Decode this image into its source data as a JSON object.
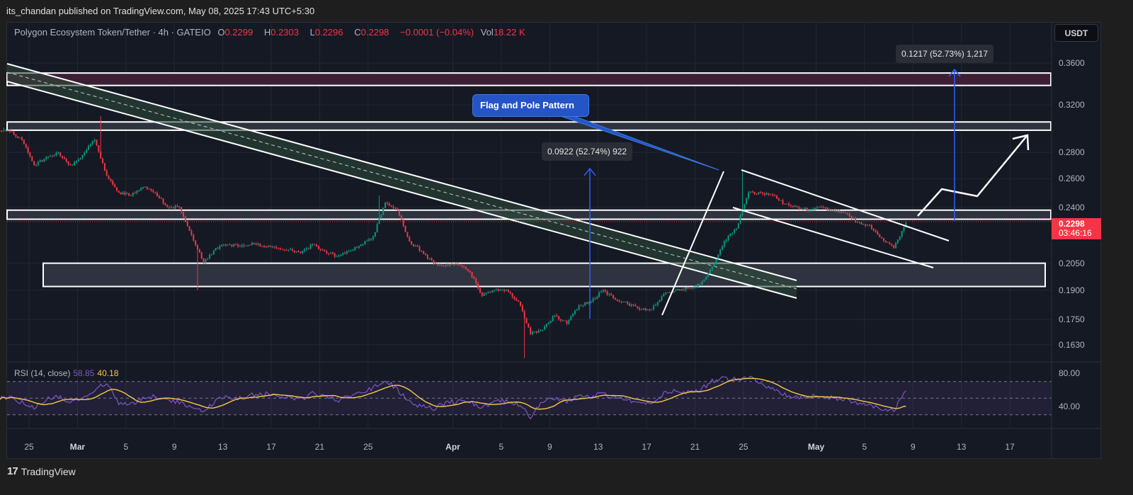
{
  "header": {
    "published": "its_chandan published on TradingView.com, May 08, 2025 17:43 UTC+5:30"
  },
  "legend": {
    "symbol": "Polygon Ecosystem Token/Tether · 4h · GATEIO",
    "o_label": "O",
    "o": "0.2299",
    "h_label": "H",
    "h": "0.2303",
    "l_label": "L",
    "l": "0.2296",
    "c_label": "C",
    "c": "0.2298",
    "change": "−0.0001 (−0.04%)",
    "vol_label": "Vol",
    "vol": "18.22 K"
  },
  "currency_button": "USDT",
  "last_price": {
    "price": "0.2298",
    "countdown": "03:46:16",
    "color": "#f23645"
  },
  "annotations": {
    "callout": "Flag and Pole Pattern",
    "measure_1": "0.0922 (52.74%) 922",
    "measure_2": "0.1217 (52.73%) 1,217"
  },
  "rsi": {
    "label": "RSI (14, close)",
    "value": "58.85",
    "ma_value": "40.18",
    "ticks": [
      "80.00",
      "40.00"
    ]
  },
  "footer": {
    "brand": "TradingView"
  },
  "colors": {
    "up": "#089981",
    "down": "#f23645",
    "rsi": "#7e57c2",
    "rsi_ma": "#f7c948",
    "callout": "#2554c7",
    "measure": "#2962ff"
  },
  "chart_data": {
    "type": "candlestick",
    "title": "Polygon Ecosystem Token/Tether · 4h · GATEIO",
    "y_scale": "log",
    "ylim": [
      0.155,
      0.375
    ],
    "price_ticks": [
      "0.3600",
      "0.3200",
      "0.2800",
      "0.2600",
      "0.2400",
      "0.2050",
      "0.1900",
      "0.1750",
      "0.1630"
    ],
    "x_ticks": [
      {
        "label": "25",
        "date": "2025-02-25"
      },
      {
        "label": "Mar",
        "date": "2025-03-01"
      },
      {
        "label": "5",
        "date": "2025-03-05"
      },
      {
        "label": "9",
        "date": "2025-03-09"
      },
      {
        "label": "13",
        "date": "2025-03-13"
      },
      {
        "label": "17",
        "date": "2025-03-17"
      },
      {
        "label": "21",
        "date": "2025-03-21"
      },
      {
        "label": "25",
        "date": "2025-03-25"
      },
      {
        "label": "Apr",
        "date": "2025-04-01"
      },
      {
        "label": "5",
        "date": "2025-04-05"
      },
      {
        "label": "9",
        "date": "2025-04-09"
      },
      {
        "label": "13",
        "date": "2025-04-13"
      },
      {
        "label": "17",
        "date": "2025-04-17"
      },
      {
        "label": "21",
        "date": "2025-04-21"
      },
      {
        "label": "25",
        "date": "2025-04-25"
      },
      {
        "label": "May",
        "date": "2025-05-01"
      },
      {
        "label": "5",
        "date": "2025-05-05"
      },
      {
        "label": "9",
        "date": "2025-05-09"
      },
      {
        "label": "13",
        "date": "2025-05-13"
      },
      {
        "label": "17",
        "date": "2025-05-17"
      }
    ],
    "daily_start": "2025-02-23",
    "daily_close": [
      0.297,
      0.29,
      0.27,
      0.276,
      0.28,
      0.27,
      0.278,
      0.29,
      0.262,
      0.25,
      0.248,
      0.254,
      0.25,
      0.24,
      0.24,
      0.222,
      0.205,
      0.214,
      0.216,
      0.215,
      0.217,
      0.215,
      0.214,
      0.213,
      0.211,
      0.216,
      0.212,
      0.209,
      0.212,
      0.216,
      0.221,
      0.243,
      0.238,
      0.218,
      0.212,
      0.205,
      0.204,
      0.204,
      0.2,
      0.187,
      0.19,
      0.19,
      0.184,
      0.168,
      0.17,
      0.177,
      0.173,
      0.182,
      0.184,
      0.19,
      0.185,
      0.183,
      0.18,
      0.18,
      0.188,
      0.19,
      0.191,
      0.193,
      0.203,
      0.218,
      0.226,
      0.25,
      0.25,
      0.248,
      0.242,
      0.24,
      0.238,
      0.24,
      0.238,
      0.236,
      0.23,
      0.228,
      0.22,
      0.214,
      0.2298
    ],
    "wick_extremes": [
      {
        "date": "2025-02-23",
        "high": 0.3
      },
      {
        "date": "2025-03-03",
        "high": 0.31
      },
      {
        "date": "2025-03-11",
        "low": 0.19
      },
      {
        "date": "2025-03-26",
        "high": 0.248
      },
      {
        "date": "2025-04-07",
        "low": 0.157
      },
      {
        "date": "2025-04-25",
        "high": 0.266
      }
    ],
    "rsi_daily": [
      50,
      45,
      38,
      48,
      52,
      45,
      50,
      58,
      70,
      45,
      42,
      50,
      52,
      48,
      46,
      40,
      34,
      48,
      52,
      50,
      54,
      55,
      53,
      52,
      48,
      56,
      54,
      46,
      52,
      56,
      62,
      72,
      60,
      45,
      40,
      38,
      45,
      46,
      45,
      38,
      45,
      47,
      42,
      28,
      45,
      50,
      46,
      55,
      52,
      55,
      50,
      48,
      46,
      44,
      55,
      58,
      57,
      60,
      70,
      74,
      72,
      76,
      68,
      62,
      55,
      50,
      52,
      53,
      50,
      48,
      44,
      42,
      38,
      35,
      58.85
    ],
    "rsi_levels": [
      70,
      50,
      30
    ],
    "zones": [
      [
        0.338,
        0.35
      ],
      [
        0.298,
        0.305
      ],
      [
        0.232,
        0.238
      ],
      [
        0.192,
        0.205
      ]
    ]
  }
}
